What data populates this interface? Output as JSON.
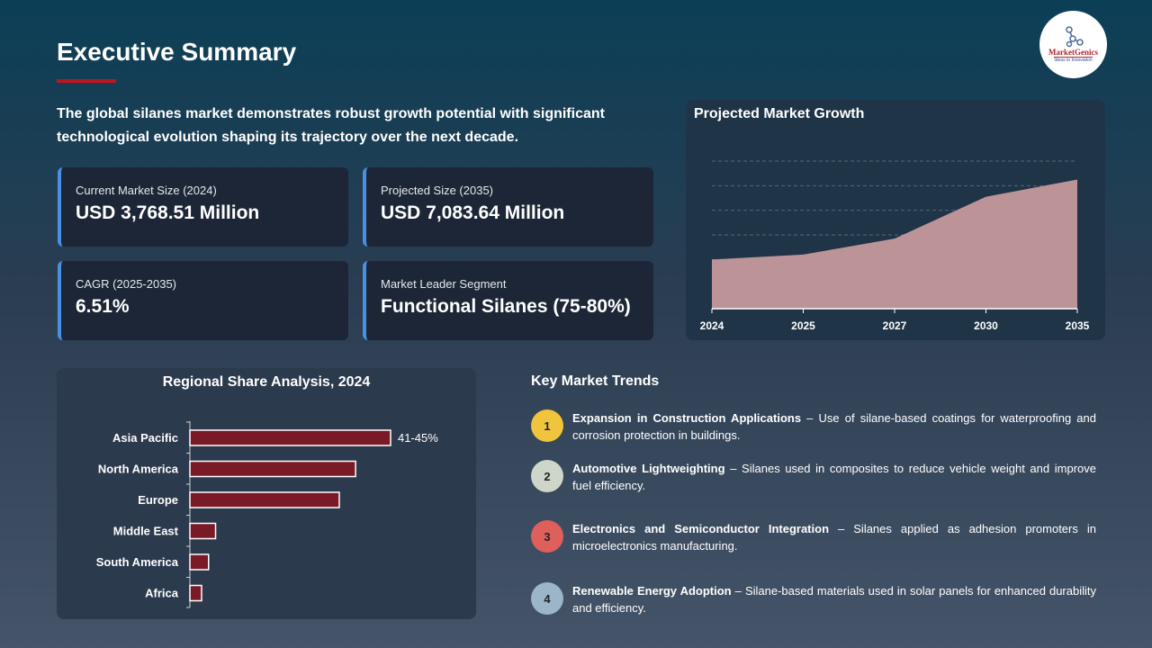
{
  "title": "Executive Summary",
  "intro": "The global silanes market demonstrates robust growth potential with significant technological evolution shaping its trajectory over the next decade.",
  "logo": {
    "name": "MarketGenics",
    "tagline": "Ideas to Innovation"
  },
  "cards": [
    {
      "label": "Current Market Size (2024)",
      "value": "USD 3,768.51 Million"
    },
    {
      "label": "Projected Size (2035)",
      "value": "USD 7,083.64 Million"
    },
    {
      "label": "CAGR (2025-2035)",
      "value": "6.51%"
    },
    {
      "label": "Market Leader Segment",
      "value": "Functional Silanes (75-80%)"
    }
  ],
  "colors": {
    "accent": "#c0141c",
    "card_border": "#4a8fe0",
    "area": "#bc9498",
    "bar": "#7a1a26"
  },
  "chart_data": [
    {
      "type": "area",
      "title": "Projected Market Growth",
      "categories": [
        "2024",
        "2025",
        "2027",
        "2030",
        "2035"
      ],
      "values": [
        2.0,
        2.2,
        2.85,
        4.55,
        5.25
      ],
      "ylim": [
        0,
        6
      ],
      "grid": true
    },
    {
      "type": "bar",
      "orientation": "horizontal",
      "title": "Regional Share Analysis, 2024",
      "categories": [
        "Asia Pacific",
        "North America",
        "Europe",
        "Middle East",
        "South America",
        "Africa"
      ],
      "values": [
        43,
        35.5,
        32,
        5.5,
        4,
        2.5
      ],
      "data_labels": [
        "41-45%",
        "",
        "",
        "",
        "",
        ""
      ]
    }
  ],
  "trends_title": "Key Market Trends",
  "trends": [
    {
      "num": "1",
      "color": "#f0c43c",
      "title": "Expansion in Construction Applications",
      "text": " – Use of silane-based coatings for waterproofing and corrosion protection in buildings."
    },
    {
      "num": "2",
      "color": "#cdd6c8",
      "title": "Automotive Lightweighting",
      "text": " – Silanes used in composites to reduce vehicle weight and improve fuel efficiency."
    },
    {
      "num": "3",
      "color": "#de5f5c",
      "title": "Electronics and Semiconductor Integration",
      "text": " – Silanes applied as adhesion promoters in microelectronics manufacturing."
    },
    {
      "num": "4",
      "color": "#9ab6c8",
      "title": "Renewable Energy Adoption",
      "text": " – Silane-based materials used in solar panels for enhanced durability and efficiency."
    }
  ]
}
